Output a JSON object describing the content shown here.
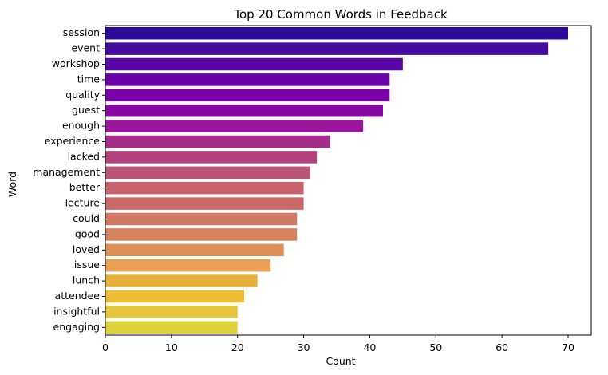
{
  "chart_data": {
    "type": "bar",
    "orientation": "horizontal",
    "title": "Top 20 Common Words in Feedback",
    "xlabel": "Count",
    "ylabel": "Word",
    "xlim": [
      0,
      73.5
    ],
    "xticks": [
      0,
      10,
      20,
      30,
      40,
      50,
      60,
      70
    ],
    "grid": false,
    "colormap": "plasma",
    "categories": [
      "session",
      "event",
      "workshop",
      "time",
      "quality",
      "guest",
      "enough",
      "experience",
      "lacked",
      "management",
      "better",
      "lecture",
      "could",
      "good",
      "loved",
      "issue",
      "lunch",
      "attendee",
      "insightful",
      "engaging"
    ],
    "values": [
      70,
      67,
      45,
      43,
      43,
      42,
      39,
      34,
      32,
      31,
      30,
      30,
      29,
      29,
      27,
      25,
      23,
      21,
      20,
      20
    ],
    "colors": [
      "#2f0a98",
      "#420a9e",
      "#5a05a6",
      "#6a00a8",
      "#7a02a8",
      "#8709a3",
      "#9a179b",
      "#a42e88",
      "#b3427d",
      "#b95577",
      "#c8636d",
      "#cc6767",
      "#d27763",
      "#d5835e",
      "#de8f53",
      "#eba053",
      "#e7ae3a",
      "#edbd36",
      "#e5c63a",
      "#dfd13a"
    ]
  }
}
